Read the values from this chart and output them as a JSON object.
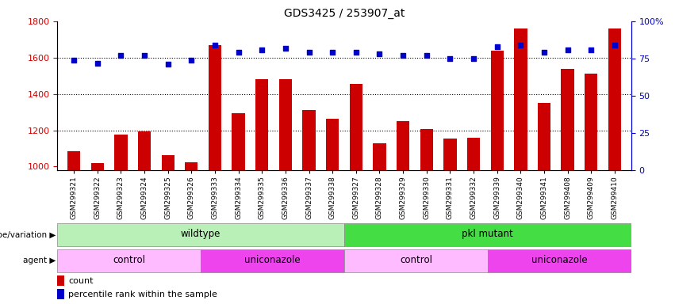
{
  "title": "GDS3425 / 253907_at",
  "samples": [
    "GSM299321",
    "GSM299322",
    "GSM299323",
    "GSM299324",
    "GSM299325",
    "GSM299326",
    "GSM299333",
    "GSM299334",
    "GSM299335",
    "GSM299336",
    "GSM299337",
    "GSM299338",
    "GSM299327",
    "GSM299328",
    "GSM299329",
    "GSM299330",
    "GSM299331",
    "GSM299332",
    "GSM299339",
    "GSM299340",
    "GSM299341",
    "GSM299408",
    "GSM299409",
    "GSM299410"
  ],
  "bar_values": [
    1085,
    1020,
    1175,
    1195,
    1065,
    1025,
    1670,
    1295,
    1480,
    1480,
    1310,
    1265,
    1455,
    1130,
    1250,
    1205,
    1155,
    1160,
    1640,
    1760,
    1350,
    1540,
    1510,
    1760
  ],
  "dot_values": [
    74,
    72,
    77,
    77,
    71,
    74,
    84,
    79,
    81,
    82,
    79,
    79,
    79,
    78,
    77,
    77,
    75,
    75,
    83,
    84,
    79,
    81,
    81,
    84
  ],
  "bar_color": "#cc0000",
  "dot_color": "#0000cc",
  "ylim_left": [
    980,
    1800
  ],
  "ylim_right": [
    0,
    100
  ],
  "yticks_left": [
    1000,
    1200,
    1400,
    1600,
    1800
  ],
  "yticks_right": [
    0,
    25,
    50,
    75,
    100
  ],
  "grid_values": [
    1200,
    1400,
    1600
  ],
  "background_color": "#ffffff",
  "plot_bg_color": "#ffffff",
  "genotype_groups": [
    {
      "label": "wildtype",
      "start": 0,
      "end": 12,
      "color": "#b8f0b8"
    },
    {
      "label": "pkl mutant",
      "start": 12,
      "end": 24,
      "color": "#44dd44"
    }
  ],
  "agent_groups": [
    {
      "label": "control",
      "start": 0,
      "end": 6,
      "color": "#ffbbff"
    },
    {
      "label": "uniconazole",
      "start": 6,
      "end": 12,
      "color": "#ee44ee"
    },
    {
      "label": "control",
      "start": 12,
      "end": 18,
      "color": "#ffbbff"
    },
    {
      "label": "uniconazole",
      "start": 18,
      "end": 24,
      "color": "#ee44ee"
    }
  ],
  "legend_count_color": "#cc0000",
  "legend_dot_color": "#0000cc",
  "right_axis_color": "#0000cc",
  "left_axis_color": "#cc0000"
}
